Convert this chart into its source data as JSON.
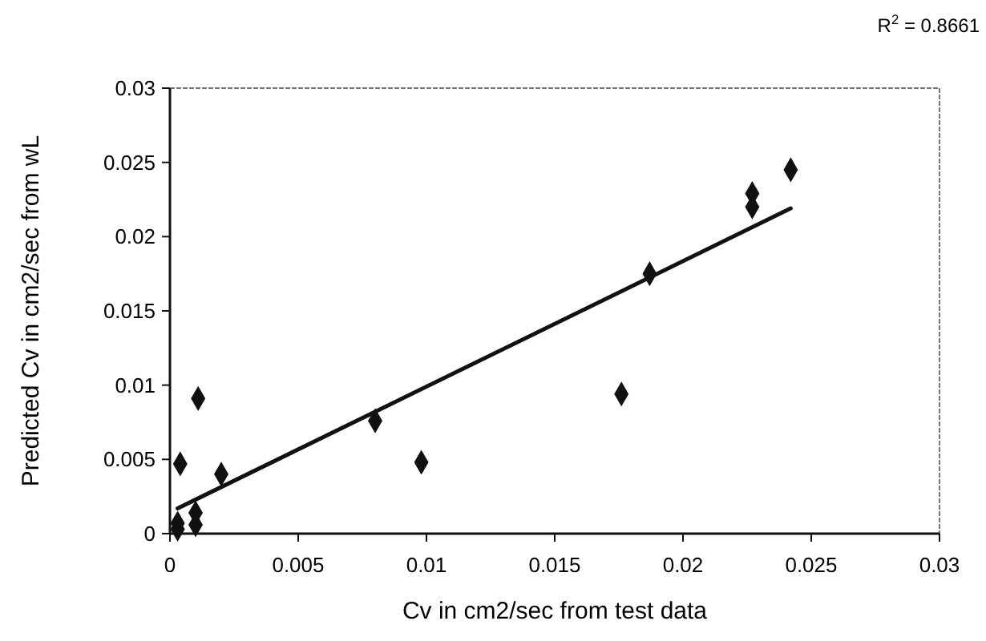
{
  "chart_data": {
    "type": "scatter",
    "xlabel": "Cv in cm2/sec from test data",
    "ylabel": "Predicted Cv in cm2/sec from wL",
    "annotations": [
      "R$^{2}$ = 0.8661"
    ],
    "xlim": [
      0,
      0.03
    ],
    "ylim": [
      0,
      0.03
    ],
    "xticks": [
      0,
      0.005,
      0.01,
      0.015,
      0.02,
      0.025,
      0.03
    ],
    "yticks": [
      0,
      0.005,
      0.01,
      0.015,
      0.02,
      0.025,
      0.03
    ],
    "grid": false,
    "marker": "diamond",
    "series": [
      {
        "color": "#111111",
        "x": [
          0.0003,
          0.0003,
          0.0004,
          0.001,
          0.001,
          0.0011,
          0.002,
          0.008,
          0.0098,
          0.0176,
          0.0187,
          0.0227,
          0.0227,
          0.0242
        ],
        "values": [
          0.0003,
          0.0007,
          0.0047,
          0.0006,
          0.0014,
          0.0091,
          0.004,
          0.0076,
          0.0048,
          0.0094,
          0.0175,
          0.022,
          0.0229,
          0.0245
        ]
      },
      {
        "type": "line",
        "color": "#111111",
        "line_style": "solid",
        "marker": "none",
        "x": [
          0.0003,
          0.0242
        ],
        "values": [
          0.0017,
          0.0219
        ]
      }
    ]
  }
}
